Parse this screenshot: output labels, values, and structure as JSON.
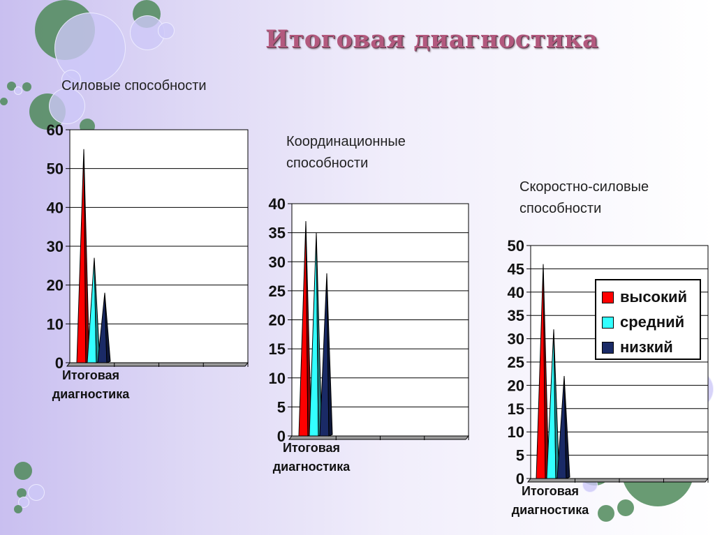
{
  "slide": {
    "title": "Итоговая диагностика"
  },
  "legend": [
    {
      "label": "высокий",
      "color": "#ff0000"
    },
    {
      "label": "средний",
      "color": "#33ffff"
    },
    {
      "label": "низкий",
      "color": "#1a2a66"
    }
  ],
  "chart_data": [
    {
      "type": "bar",
      "title": "Силовые способности",
      "category_label": "Итоговая диагностика",
      "series": [
        {
          "name": "высокий",
          "values": [
            55
          ]
        },
        {
          "name": "средний",
          "values": [
            27
          ]
        },
        {
          "name": "низкий",
          "values": [
            18
          ]
        }
      ],
      "ylim": [
        0,
        60
      ],
      "yticks": [
        0,
        10,
        20,
        30,
        40,
        50,
        60
      ],
      "grid": true
    },
    {
      "type": "bar",
      "title": "Координационные способности",
      "category_label": "Итоговая диагностика",
      "series": [
        {
          "name": "высокий",
          "values": [
            37
          ]
        },
        {
          "name": "средний",
          "values": [
            35
          ]
        },
        {
          "name": "низкий",
          "values": [
            28
          ]
        }
      ],
      "ylim": [
        0,
        40
      ],
      "yticks": [
        0,
        5,
        10,
        15,
        20,
        25,
        30,
        35,
        40
      ],
      "grid": true
    },
    {
      "type": "bar",
      "title": "Скоростно-силовые способности",
      "category_label": "Итоговая диагностика",
      "series": [
        {
          "name": "высокий",
          "values": [
            46
          ]
        },
        {
          "name": "средний",
          "values": [
            32
          ]
        },
        {
          "name": "низкий",
          "values": [
            22
          ]
        }
      ],
      "ylim": [
        0,
        50
      ],
      "yticks": [
        0,
        5,
        10,
        15,
        20,
        25,
        30,
        35,
        40,
        45,
        50
      ],
      "grid": true,
      "legend": "right"
    }
  ]
}
